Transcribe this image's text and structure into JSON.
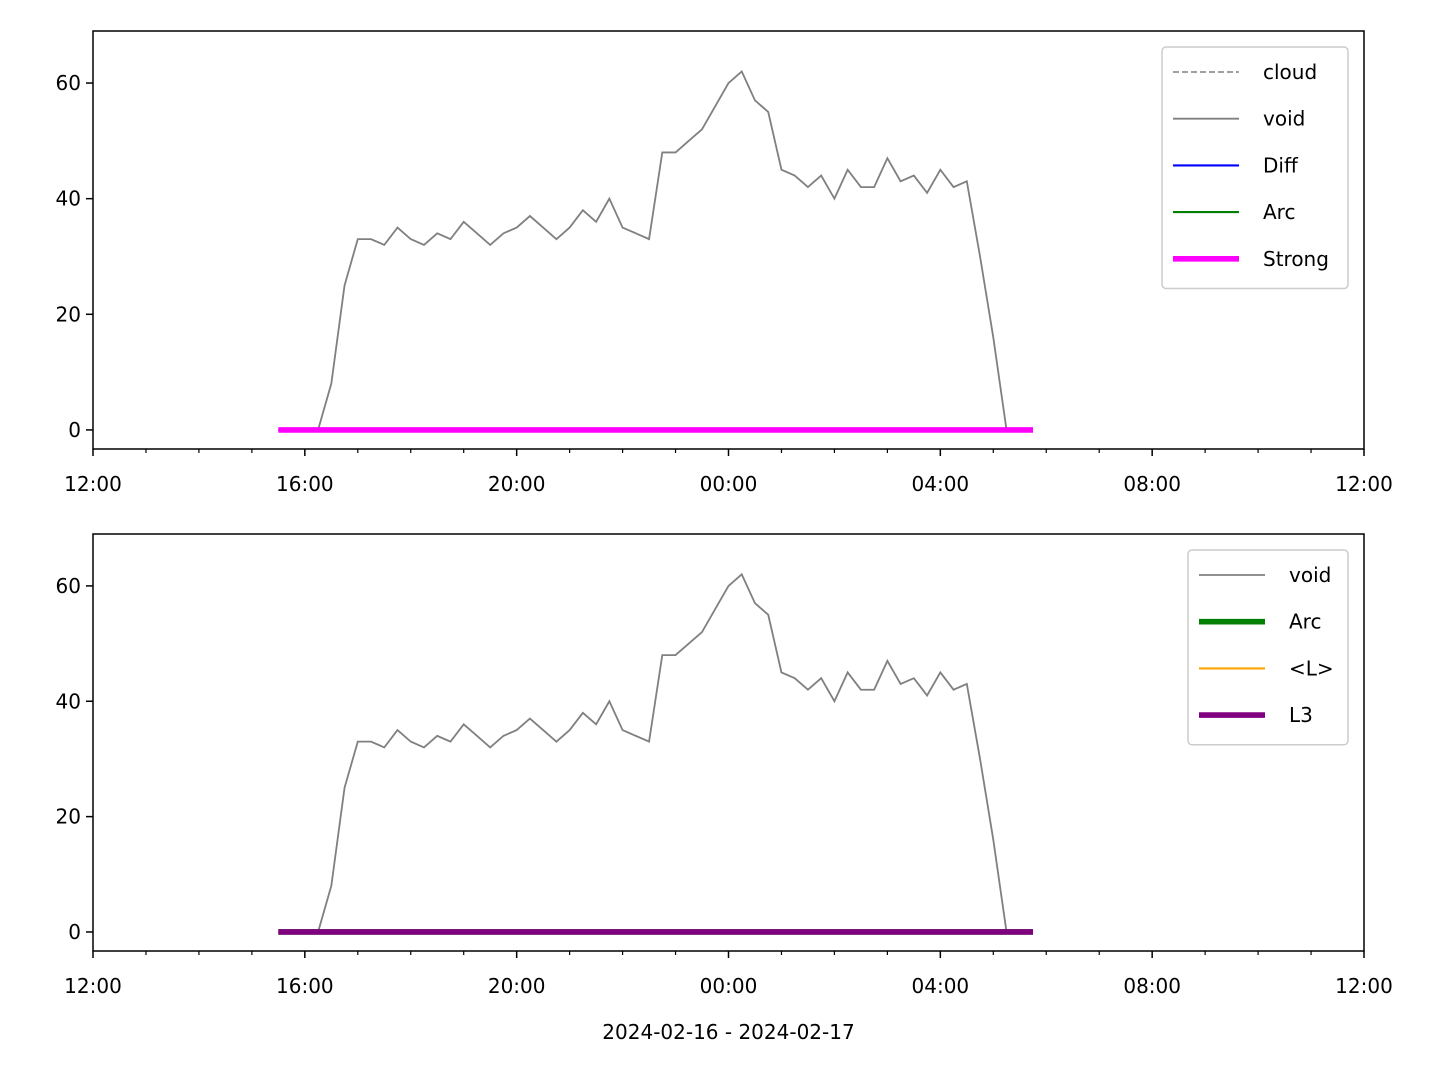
{
  "chart_data": [
    {
      "type": "line",
      "x": [
        15.5,
        15.75,
        16,
        16.25,
        16.5,
        16.75,
        17,
        17.25,
        17.5,
        17.75,
        18,
        18.25,
        18.5,
        18.75,
        19,
        19.25,
        19.5,
        19.75,
        20,
        20.25,
        20.5,
        20.75,
        21,
        21.25,
        21.5,
        21.75,
        22,
        22.25,
        22.5,
        22.75,
        23,
        23.25,
        23.5,
        23.75,
        24,
        24.25,
        24.5,
        24.75,
        25,
        25.25,
        25.5,
        25.75,
        26,
        26.25,
        26.5,
        26.75,
        27,
        27.25,
        27.5,
        27.75,
        28,
        28.25,
        28.5,
        28.75,
        29,
        29.25,
        29.5,
        29.75
      ],
      "series": [
        {
          "name": "cloud",
          "color": "#808080",
          "linestyle": "dashed",
          "linewidth": 1,
          "values": [
            0,
            0,
            0,
            0,
            0,
            0,
            0,
            0,
            0,
            0,
            0,
            0,
            0,
            0,
            0,
            0,
            0,
            0,
            0,
            0,
            0,
            0,
            0,
            0,
            0,
            0,
            0,
            0,
            0,
            0,
            0,
            0,
            0,
            0,
            0,
            0,
            0,
            0,
            0,
            0,
            0,
            0,
            0,
            0,
            0,
            0,
            0,
            0,
            0,
            0,
            0,
            0,
            0,
            0,
            0,
            0,
            0,
            0
          ]
        },
        {
          "name": "void",
          "color": "#808080",
          "linestyle": "solid",
          "linewidth": 1.3,
          "values": [
            null,
            null,
            null,
            0,
            8,
            25,
            33,
            33,
            32,
            35,
            33,
            32,
            34,
            33,
            36,
            34,
            32,
            34,
            35,
            37,
            35,
            33,
            35,
            38,
            36,
            40,
            35,
            34,
            33,
            48,
            48,
            50,
            52,
            56,
            60,
            62,
            57,
            55,
            45,
            44,
            42,
            44,
            40,
            45,
            42,
            42,
            47,
            43,
            44,
            41,
            45,
            42,
            43,
            30,
            16,
            0,
            null,
            null
          ]
        },
        {
          "name": "Diff",
          "color": "#0000ff",
          "linestyle": "solid",
          "linewidth": 1.5,
          "values": [
            0,
            0,
            0,
            0,
            0,
            0,
            0,
            0,
            0,
            0,
            0,
            0,
            0,
            0,
            0,
            0,
            0,
            0,
            0,
            0,
            0,
            0,
            0,
            0,
            0,
            0,
            0,
            0,
            0,
            0,
            0,
            0,
            0,
            0,
            0,
            0,
            0,
            0,
            0,
            0,
            0,
            0,
            0,
            0,
            0,
            0,
            0,
            0,
            0,
            0,
            0,
            0,
            0,
            0,
            0,
            0,
            0,
            0
          ]
        },
        {
          "name": "Arc",
          "color": "#008000",
          "linestyle": "solid",
          "linewidth": 1.5,
          "values": [
            0,
            0,
            0,
            0,
            0,
            0,
            0,
            0,
            0,
            0,
            0,
            0,
            0,
            0,
            0,
            0,
            0,
            0,
            0,
            0,
            0,
            0,
            0,
            0,
            0,
            0,
            0,
            0,
            0,
            0,
            0,
            0,
            0,
            0,
            0,
            0,
            0,
            0,
            0,
            0,
            0,
            0,
            0,
            0,
            0,
            0,
            0,
            0,
            0,
            0,
            0,
            0,
            0,
            0,
            0,
            0,
            0,
            0
          ]
        },
        {
          "name": "Strong",
          "color": "#ff00ff",
          "linestyle": "solid",
          "linewidth": 4,
          "values": [
            0,
            0,
            0,
            0,
            0,
            0,
            0,
            0,
            0,
            0,
            0,
            0,
            0,
            0,
            0,
            0,
            0,
            0,
            0,
            0,
            0,
            0,
            0,
            0,
            0,
            0,
            0,
            0,
            0,
            0,
            0,
            0,
            0,
            0,
            0,
            0,
            0,
            0,
            0,
            0,
            0,
            0,
            0,
            0,
            0,
            0,
            0,
            0,
            0,
            0,
            0,
            0,
            0,
            0,
            0,
            0,
            0,
            0
          ]
        }
      ],
      "xlim": [
        12,
        36
      ],
      "ylim": [
        -3.3,
        69
      ],
      "xticks": [
        {
          "value": 12,
          "label": "12:00"
        },
        {
          "value": 16,
          "label": "16:00"
        },
        {
          "value": 20,
          "label": "20:00"
        },
        {
          "value": 24,
          "label": "00:00"
        },
        {
          "value": 28,
          "label": "04:00"
        },
        {
          "value": 32,
          "label": "08:00"
        },
        {
          "value": 36,
          "label": "12:00"
        }
      ],
      "xminorticks": [
        13,
        14,
        15,
        17,
        18,
        19,
        21,
        22,
        23,
        25,
        26,
        27,
        29,
        30,
        31,
        33,
        34,
        35
      ],
      "yticks": [
        0,
        20,
        40,
        60
      ],
      "legend": "upper right"
    },
    {
      "type": "line",
      "x": [
        15.5,
        15.75,
        16,
        16.25,
        16.5,
        16.75,
        17,
        17.25,
        17.5,
        17.75,
        18,
        18.25,
        18.5,
        18.75,
        19,
        19.25,
        19.5,
        19.75,
        20,
        20.25,
        20.5,
        20.75,
        21,
        21.25,
        21.5,
        21.75,
        22,
        22.25,
        22.5,
        22.75,
        23,
        23.25,
        23.5,
        23.75,
        24,
        24.25,
        24.5,
        24.75,
        25,
        25.25,
        25.5,
        25.75,
        26,
        26.25,
        26.5,
        26.75,
        27,
        27.25,
        27.5,
        27.75,
        28,
        28.25,
        28.5,
        28.75,
        29,
        29.25,
        29.5,
        29.75
      ],
      "series": [
        {
          "name": "void",
          "color": "#808080",
          "linestyle": "solid",
          "linewidth": 1.3,
          "values": [
            null,
            null,
            null,
            0,
            8,
            25,
            33,
            33,
            32,
            35,
            33,
            32,
            34,
            33,
            36,
            34,
            32,
            34,
            35,
            37,
            35,
            33,
            35,
            38,
            36,
            40,
            35,
            34,
            33,
            48,
            48,
            50,
            52,
            56,
            60,
            62,
            57,
            55,
            45,
            44,
            42,
            44,
            40,
            45,
            42,
            42,
            47,
            43,
            44,
            41,
            45,
            42,
            43,
            30,
            16,
            0,
            null,
            null
          ]
        },
        {
          "name": "Arc",
          "color": "#008000",
          "linestyle": "solid",
          "linewidth": 4,
          "values": [
            0,
            0,
            0,
            0,
            0,
            0,
            0,
            0,
            0,
            0,
            0,
            0,
            0,
            0,
            0,
            0,
            0,
            0,
            0,
            0,
            0,
            0,
            0,
            0,
            0,
            0,
            0,
            0,
            0,
            0,
            0,
            0,
            0,
            0,
            0,
            0,
            0,
            0,
            0,
            0,
            0,
            0,
            0,
            0,
            0,
            0,
            0,
            0,
            0,
            0,
            0,
            0,
            0,
            0,
            0,
            0,
            0,
            0
          ]
        },
        {
          "name": "<L>",
          "color": "#ffa500",
          "linestyle": "solid",
          "linewidth": 1.5,
          "values": [
            0,
            0,
            0,
            0,
            0,
            0,
            0,
            0,
            0,
            0,
            0,
            0,
            0,
            0,
            0,
            0,
            0,
            0,
            0,
            0,
            0,
            0,
            0,
            0,
            0,
            0,
            0,
            0,
            0,
            0,
            0,
            0,
            0,
            0,
            0,
            0,
            0,
            0,
            0,
            0,
            0,
            0,
            0,
            0,
            0,
            0,
            0,
            0,
            0,
            0,
            0,
            0,
            0,
            0,
            0,
            0,
            0,
            0
          ]
        },
        {
          "name": "L3",
          "color": "#800080",
          "linestyle": "solid",
          "linewidth": 4,
          "values": [
            0,
            0,
            0,
            0,
            0,
            0,
            0,
            0,
            0,
            0,
            0,
            0,
            0,
            0,
            0,
            0,
            0,
            0,
            0,
            0,
            0,
            0,
            0,
            0,
            0,
            0,
            0,
            0,
            0,
            0,
            0,
            0,
            0,
            0,
            0,
            0,
            0,
            0,
            0,
            0,
            0,
            0,
            0,
            0,
            0,
            0,
            0,
            0,
            0,
            0,
            0,
            0,
            0,
            0,
            0,
            0,
            0,
            0
          ]
        }
      ],
      "xlim": [
        12,
        36
      ],
      "ylim": [
        -3.3,
        69
      ],
      "xticks": [
        {
          "value": 12,
          "label": "12:00"
        },
        {
          "value": 16,
          "label": "16:00"
        },
        {
          "value": 20,
          "label": "20:00"
        },
        {
          "value": 24,
          "label": "00:00"
        },
        {
          "value": 28,
          "label": "04:00"
        },
        {
          "value": 32,
          "label": "08:00"
        },
        {
          "value": 36,
          "label": "12:00"
        }
      ],
      "xminorticks": [
        13,
        14,
        15,
        17,
        18,
        19,
        21,
        22,
        23,
        25,
        26,
        27,
        29,
        30,
        31,
        33,
        34,
        35
      ],
      "yticks": [
        0,
        20,
        40,
        60
      ],
      "xlabel": "2024-02-16 - 2024-02-17",
      "legend": "upper right"
    }
  ]
}
